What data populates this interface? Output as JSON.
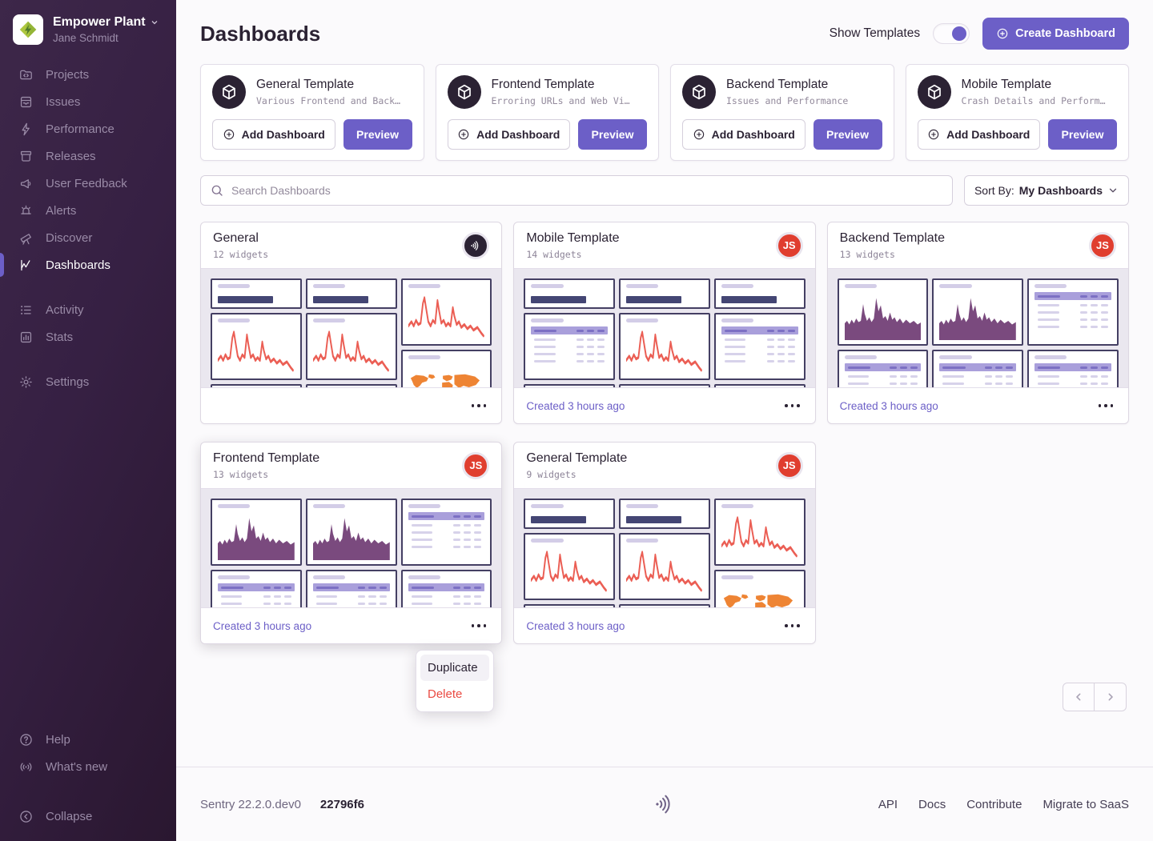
{
  "org": {
    "name": "Empower Plant",
    "user": "Jane Schmidt"
  },
  "sidebar": {
    "primary": [
      {
        "id": "projects",
        "label": "Projects",
        "icon": "projects",
        "active": false
      },
      {
        "id": "issues",
        "label": "Issues",
        "icon": "issues",
        "active": false
      },
      {
        "id": "performance",
        "label": "Performance",
        "icon": "performance",
        "active": false
      },
      {
        "id": "releases",
        "label": "Releases",
        "icon": "releases",
        "active": false
      },
      {
        "id": "user-feedback",
        "label": "User Feedback",
        "icon": "feedback",
        "active": false
      },
      {
        "id": "alerts",
        "label": "Alerts",
        "icon": "alerts",
        "active": false
      },
      {
        "id": "discover",
        "label": "Discover",
        "icon": "discover",
        "active": false
      },
      {
        "id": "dashboards",
        "label": "Dashboards",
        "icon": "dashboards",
        "active": true
      }
    ],
    "secondary": [
      {
        "id": "activity",
        "label": "Activity",
        "icon": "activity",
        "active": false
      },
      {
        "id": "stats",
        "label": "Stats",
        "icon": "stats",
        "active": false
      }
    ],
    "tertiary": [
      {
        "id": "settings",
        "label": "Settings",
        "icon": "settings",
        "active": false
      }
    ],
    "bottom": [
      {
        "id": "help",
        "label": "Help",
        "icon": "help",
        "active": false
      },
      {
        "id": "whats-new",
        "label": "What's new",
        "icon": "whatsnew",
        "active": false
      }
    ],
    "collapse": {
      "id": "collapse",
      "label": "Collapse",
      "icon": "collapse"
    }
  },
  "header": {
    "title": "Dashboards",
    "show_templates_label": "Show Templates",
    "show_templates_on": true,
    "create_button": "Create Dashboard"
  },
  "templates": [
    {
      "title": "General Template",
      "description": "Various Frontend and Back…",
      "add_label": "Add Dashboard",
      "preview_label": "Preview"
    },
    {
      "title": "Frontend Template",
      "description": "Erroring URLs and Web Vi…",
      "add_label": "Add Dashboard",
      "preview_label": "Preview"
    },
    {
      "title": "Backend Template",
      "description": "Issues and Performance",
      "add_label": "Add Dashboard",
      "preview_label": "Preview"
    },
    {
      "title": "Mobile Template",
      "description": "Crash Details and Perform…",
      "add_label": "Add Dashboard",
      "preview_label": "Preview"
    }
  ],
  "search": {
    "placeholder": "Search Dashboards"
  },
  "sort": {
    "label": "Sort By:",
    "value": "My Dashboards"
  },
  "dashboards": [
    {
      "title": "General",
      "widgets": "12 widgets",
      "avatar": {
        "type": "sentry"
      },
      "created": "",
      "columns": [
        [
          "bignum",
          "line",
          "stub"
        ],
        [
          "bignum",
          "line",
          "stub"
        ],
        [
          "line",
          "map"
        ]
      ],
      "active": false
    },
    {
      "title": "Mobile Template",
      "widgets": "14 widgets",
      "avatar": {
        "type": "initials",
        "initials": "JS"
      },
      "created": "Created 3 hours ago",
      "columns": [
        [
          "bignum",
          "table",
          "stub"
        ],
        [
          "bignum",
          "line",
          "stub"
        ],
        [
          "bignum",
          "table",
          "stub"
        ]
      ],
      "active": false
    },
    {
      "title": "Backend Template",
      "widgets": "13 widgets",
      "avatar": {
        "type": "initials",
        "initials": "JS"
      },
      "created": "Created 3 hours ago",
      "columns": [
        [
          "area",
          "table"
        ],
        [
          "area",
          "table"
        ],
        [
          "table",
          "table"
        ]
      ],
      "active": false
    },
    {
      "title": "Frontend Template",
      "widgets": "13 widgets",
      "avatar": {
        "type": "initials",
        "initials": "JS"
      },
      "created": "Created 3 hours ago",
      "columns": [
        [
          "area",
          "table"
        ],
        [
          "area",
          "table"
        ],
        [
          "table",
          "table"
        ]
      ],
      "active": true
    },
    {
      "title": "General Template",
      "widgets": "9 widgets",
      "avatar": {
        "type": "initials",
        "initials": "JS"
      },
      "created": "Created 3 hours ago",
      "columns": [
        [
          "bignum",
          "line",
          "stub"
        ],
        [
          "bignum",
          "line",
          "stub"
        ],
        [
          "line",
          "map"
        ]
      ],
      "active": false
    }
  ],
  "context_menu": {
    "items": [
      {
        "label": "Duplicate",
        "danger": false,
        "hovered": true
      },
      {
        "label": "Delete",
        "danger": true,
        "hovered": false
      }
    ]
  },
  "footer": {
    "version": "Sentry 22.2.0.dev0",
    "build": "22796f6",
    "links": [
      "API",
      "Docs",
      "Contribute",
      "Migrate to SaaS"
    ]
  },
  "colors": {
    "accent": "#6c5fc7",
    "sidebar_text": "#9a8ba7",
    "avatar_red": "#e03e2f",
    "avatar_dark": "#2b2233",
    "chart_line": "#eb5e54",
    "chart_area": "#7a4a7e",
    "chart_map": "#ee8434",
    "bignum_block": "#444674",
    "tile_border": "#443f63"
  }
}
